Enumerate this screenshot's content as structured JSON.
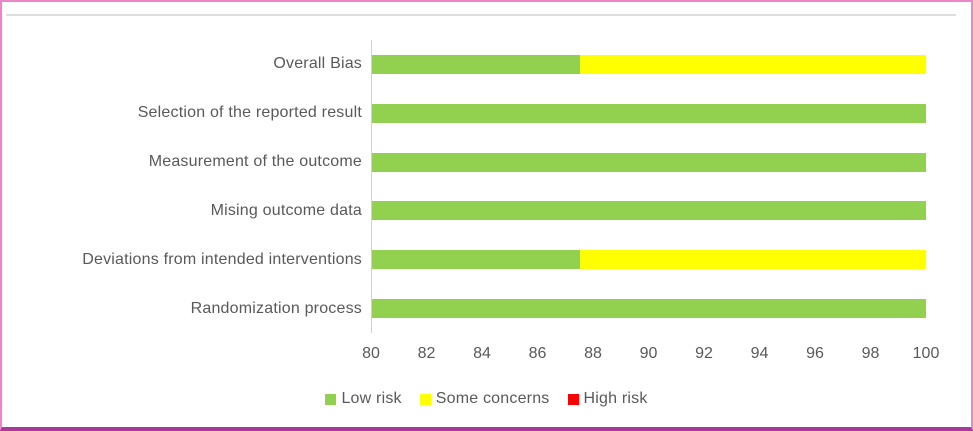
{
  "frame": {
    "border_color": "#ec86c6",
    "border_bottom_color": "#a93a9b",
    "top_rule_color": "#dedede",
    "background": "#ffffff",
    "text_color": "#595959"
  },
  "chart_data": {
    "type": "bar",
    "orientation": "horizontal",
    "stacked": true,
    "title": "",
    "xlabel": "",
    "ylabel": "",
    "categories_top_to_bottom": [
      "Overall Bias",
      "Selection of the reported result",
      "Measurement of the outcome",
      "Mising outcome data",
      "Deviations from intended interventions",
      "Randomization process"
    ],
    "series": [
      {
        "name": "Low risk",
        "color": "#92D050",
        "values": [
          87.5,
          100,
          100,
          100,
          87.5,
          100
        ]
      },
      {
        "name": "Some concerns",
        "color": "#FFFF00",
        "values": [
          12.5,
          0,
          0,
          0,
          12.5,
          0
        ]
      },
      {
        "name": "High risk",
        "color": "#FF0000",
        "values": [
          0,
          0,
          0,
          0,
          0,
          0
        ]
      }
    ],
    "xlim": [
      80,
      100
    ],
    "xticks": [
      80,
      82,
      84,
      86,
      88,
      90,
      92,
      94,
      96,
      98,
      100
    ],
    "grid": false,
    "axis_line_color": "#d0d0d0",
    "legend_position": "bottom"
  }
}
